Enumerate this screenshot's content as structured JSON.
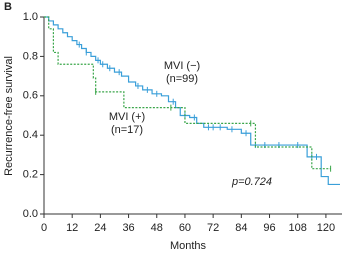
{
  "chart_data": {
    "type": "line",
    "step": true,
    "panel_label": "B",
    "xlabel": "Months",
    "ylabel": "Recurrence-free survival",
    "xlim": [
      0,
      126
    ],
    "ylim": [
      0,
      1
    ],
    "xticks": [
      0,
      12,
      24,
      36,
      48,
      60,
      72,
      84,
      96,
      108,
      120
    ],
    "yticks": [
      {
        "value": 0,
        "label": "0.0"
      },
      0.2,
      0.4,
      0.6,
      0.8,
      {
        "value": 1,
        "label": "1.0"
      }
    ],
    "series": [
      {
        "name": "MVI (−)",
        "n_label": "(n=99)",
        "color": "#3a9fd9",
        "dash": false,
        "x": [
          0,
          2,
          4,
          6,
          8,
          10,
          12,
          14,
          16,
          18,
          20,
          22,
          24,
          27,
          30,
          33,
          36,
          39,
          42,
          46,
          50,
          53,
          56,
          58,
          62,
          65,
          68,
          78,
          84,
          88,
          112,
          118,
          121,
          126
        ],
        "values": [
          1.0,
          0.98,
          0.96,
          0.94,
          0.92,
          0.9,
          0.88,
          0.86,
          0.84,
          0.82,
          0.8,
          0.78,
          0.76,
          0.74,
          0.72,
          0.7,
          0.67,
          0.65,
          0.63,
          0.61,
          0.6,
          0.57,
          0.54,
          0.5,
          0.49,
          0.46,
          0.44,
          0.43,
          0.41,
          0.35,
          0.29,
          0.19,
          0.15,
          0.15
        ],
        "censored": [
          15,
          18,
          23,
          25,
          28,
          32,
          40,
          44,
          48,
          55,
          60,
          64,
          70,
          72,
          75,
          80,
          86,
          90,
          94,
          100,
          108,
          114,
          116
        ]
      },
      {
        "name": "MVI (+)",
        "n_label": "(n=17)",
        "color": "#3aa64a",
        "dash": true,
        "x": [
          0,
          2,
          4,
          6,
          21,
          22,
          32,
          34,
          60,
          90,
          114,
          122
        ],
        "values": [
          1.0,
          0.94,
          0.82,
          0.76,
          0.69,
          0.62,
          0.62,
          0.54,
          0.46,
          0.34,
          0.23,
          0.23
        ],
        "censored": [
          22,
          54,
          88,
          122
        ]
      }
    ],
    "p_annotation": "p=0.724"
  }
}
